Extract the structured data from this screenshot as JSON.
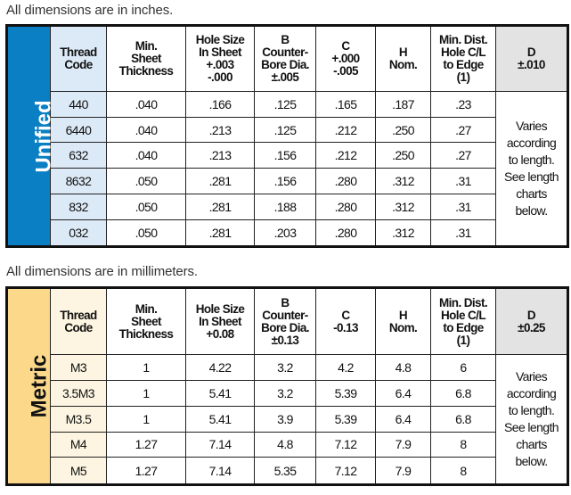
{
  "colors": {
    "unified_accent": "#0a7fc4",
    "unified_code_bg": "#dceaf7",
    "metric_accent": "#fbd88a",
    "metric_code_bg": "#fdf5e2",
    "d_header_bg": "#e3e3e3"
  },
  "unified": {
    "note": "All dimensions are in inches.",
    "label": "Unified",
    "headers": [
      "Thread\nCode",
      "Min.\nSheet\nThickness",
      "Hole Size\nIn Sheet\n+.003\n-.000",
      "B\nCounter-\nBore Dia.\n±.005",
      "C\n+.000\n-.005",
      "H\nNom.",
      "Min. Dist.\nHole C/L\nto Edge\n(1)",
      "D\n±.010"
    ],
    "rows": [
      [
        "440",
        ".040",
        ".166",
        ".125",
        ".165",
        ".187",
        ".23"
      ],
      [
        "6440",
        ".040",
        ".213",
        ".125",
        ".212",
        ".250",
        ".27"
      ],
      [
        "632",
        ".040",
        ".213",
        ".156",
        ".212",
        ".250",
        ".27"
      ],
      [
        "8632",
        ".050",
        ".281",
        ".156",
        ".280",
        ".312",
        ".31"
      ],
      [
        "832",
        ".050",
        ".281",
        ".188",
        ".280",
        ".312",
        ".31"
      ],
      [
        "032",
        ".050",
        ".281",
        ".203",
        ".280",
        ".312",
        ".31"
      ]
    ],
    "d_note": "Varies\naccording\nto length.\nSee length\ncharts\nbelow."
  },
  "metric": {
    "note": "All dimensions are in millimeters.",
    "label": "Metric",
    "headers": [
      "Thread\nCode",
      "Min.\nSheet\nThickness",
      "Hole Size\nIn Sheet\n+0.08",
      "B\nCounter-\nBore Dia.\n±0.13",
      "C\n-0.13",
      "H\nNom.",
      "Min. Dist.\nHole C/L\nto Edge\n(1)",
      "D\n±0.25"
    ],
    "rows": [
      [
        "M3",
        "1",
        "4.22",
        "3.2",
        "4.2",
        "4.8",
        "6"
      ],
      [
        "3.5M3",
        "1",
        "5.41",
        "3.2",
        "5.39",
        "6.4",
        "6.8"
      ],
      [
        "M3.5",
        "1",
        "5.41",
        "3.9",
        "5.39",
        "6.4",
        "6.8"
      ],
      [
        "M4",
        "1.27",
        "7.14",
        "4.8",
        "7.12",
        "7.9",
        "8"
      ],
      [
        "M5",
        "1.27",
        "7.14",
        "5.35",
        "7.12",
        "7.9",
        "8"
      ]
    ],
    "d_note": "Varies\naccording\nto length.\nSee length\ncharts\nbelow."
  }
}
